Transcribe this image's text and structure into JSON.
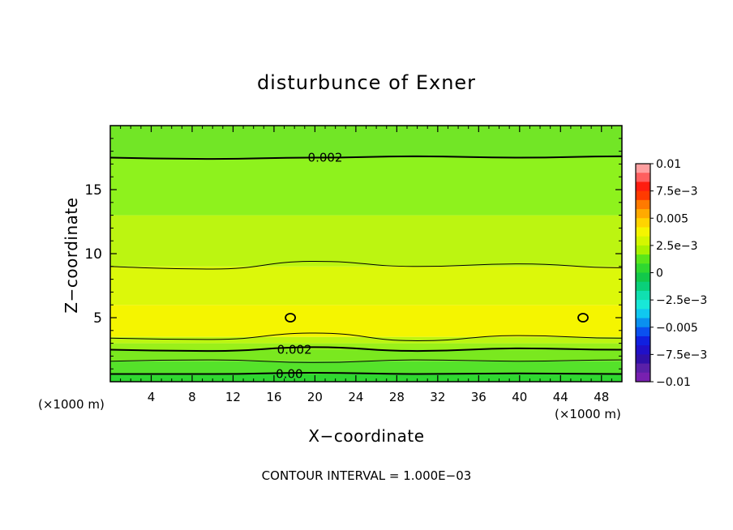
{
  "chart_data": {
    "type": "contour",
    "title": "disturbunce of Exner",
    "xlabel": "X−coordinate",
    "ylabel": "Z−coordinate",
    "x_unit_label": "(×1000 m)",
    "z_unit_label": "(×1000 m)",
    "xlim": [
      0,
      50
    ],
    "ylim": [
      0,
      20
    ],
    "x_ticks": [
      4,
      8,
      12,
      16,
      20,
      24,
      28,
      32,
      36,
      40,
      44,
      48
    ],
    "x_tick_labels": [
      "4",
      "8",
      "12",
      "16",
      "20",
      "24",
      "28",
      "32",
      "36",
      "40",
      "44",
      "48"
    ],
    "y_ticks": [
      5,
      10,
      15
    ],
    "y_tick_labels": [
      "5",
      "10",
      "15"
    ],
    "contour_interval_text": "CONTOUR INTERVAL = 1.000E−03",
    "contour_labels": [
      {
        "text": "0.002",
        "x": 21,
        "z": 17.5
      },
      {
        "text": "0.002",
        "x": 18,
        "z": 2.5
      },
      {
        "text": "0.00",
        "x": 17.5,
        "z": 0.6
      }
    ],
    "bands_bottom_to_top": [
      {
        "z_top": 0.6,
        "value_range": [
          -0.0005,
          0.0005
        ],
        "color": "#2fd830"
      },
      {
        "z_top": 1.6,
        "value_range": [
          0.0005,
          0.0015
        ],
        "color": "#55e22a"
      },
      {
        "z_top": 2.5,
        "value_range": [
          0.0015,
          0.002
        ],
        "color": "#7ae81f"
      },
      {
        "z_top": 3.0,
        "value_range": [
          0.002,
          0.0025
        ],
        "color": "#9af01a"
      },
      {
        "z_top": 3.5,
        "value_range": [
          0.0025,
          0.003
        ],
        "color": "#bdf511"
      },
      {
        "z_top": 6.0,
        "value_range": [
          0.003,
          0.0035
        ],
        "color": "#f5f500"
      },
      {
        "z_top": 9.0,
        "value_range": [
          0.0025,
          0.003
        ],
        "color": "#dcf80a"
      },
      {
        "z_top": 13.0,
        "value_range": [
          0.002,
          0.0025
        ],
        "color": "#bcf511"
      },
      {
        "z_top": 17.5,
        "value_range": [
          0.0015,
          0.002
        ],
        "color": "#8ef21d"
      },
      {
        "z_top": 20.0,
        "value_range": [
          0.001,
          0.0015
        ],
        "color": "#72e626"
      }
    ],
    "contour_lines": [
      {
        "z": [
          0.6,
          0.6,
          0.7,
          0.6,
          0.65,
          0.6
        ],
        "weight": "bold"
      },
      {
        "z": [
          1.6,
          1.7,
          1.5,
          1.7,
          1.6,
          1.7
        ],
        "weight": "thin"
      },
      {
        "z": [
          2.5,
          2.4,
          2.7,
          2.4,
          2.6,
          2.5
        ],
        "weight": "bold"
      },
      {
        "z": [
          3.4,
          3.3,
          3.8,
          3.2,
          3.6,
          3.4
        ],
        "weight": "thin"
      },
      {
        "z": [
          9.0,
          8.8,
          9.4,
          9.0,
          9.2,
          8.9
        ],
        "weight": "thin"
      },
      {
        "z": [
          17.5,
          17.4,
          17.5,
          17.6,
          17.5,
          17.6
        ],
        "weight": "bold"
      }
    ],
    "closed_contours": [
      {
        "x": 17.6,
        "z": 5.0
      },
      {
        "x": 46.2,
        "z": 5.0
      }
    ],
    "colorbar": {
      "labels": [
        "0.01",
        "7.5e−3",
        "0.005",
        "2.5e−3",
        "0",
        "−2.5e−3",
        "−0.005",
        "−7.5e−3",
        "−0.01"
      ],
      "label_values": [
        0.01,
        0.0075,
        0.005,
        0.0025,
        0,
        -0.0025,
        -0.005,
        -0.0075,
        -0.01
      ],
      "colors_top_to_bottom": [
        "#ff9fa0",
        "#ff5f5f",
        "#ff1d10",
        "#ff3a00",
        "#ff7a00",
        "#ffaa00",
        "#ffd400",
        "#f5f500",
        "#d4f700",
        "#a8f200",
        "#5ae61a",
        "#2fd830",
        "#12c84a",
        "#0ad07a",
        "#10e0b0",
        "#18e8d8",
        "#10c8f0",
        "#0a90f0",
        "#0a50f0",
        "#1020e0",
        "#2010c8",
        "#3010a8",
        "#5a20a8",
        "#7820b0"
      ]
    }
  }
}
